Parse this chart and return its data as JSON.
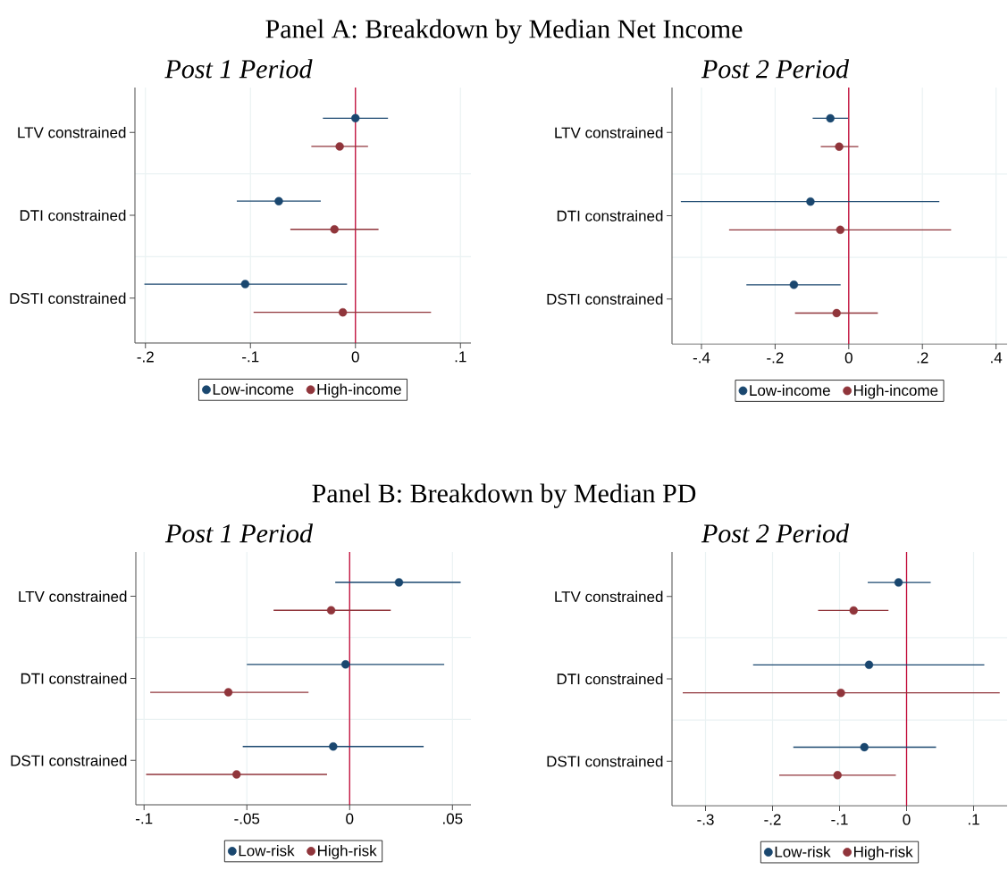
{
  "chart_data": [
    {
      "type": "scatter",
      "orientation": "horizontal",
      "title": "Post 1 Period",
      "annotations": [
        "Panel A: Breakdown by Median Net Income"
      ],
      "categories": [
        "LTV constrained",
        "DTI constrained",
        "DSTI constrained"
      ],
      "series": [
        {
          "name": "Low-income",
          "color": "#1a476f",
          "values": [
            0.0,
            -0.073,
            -0.105
          ],
          "errors": [
            [
              -0.031,
              0.031
            ],
            [
              -0.113,
              -0.033
            ],
            [
              -0.201,
              -0.008
            ]
          ]
        },
        {
          "name": "High-income",
          "color": "#90353b",
          "values": [
            -0.015,
            -0.02,
            -0.012
          ],
          "errors": [
            [
              -0.042,
              0.012
            ],
            [
              -0.062,
              0.022
            ],
            [
              -0.097,
              0.072
            ]
          ]
        }
      ],
      "xlim": [
        -0.21,
        0.11
      ],
      "xticks": [
        {
          "value": -0.2,
          "label": "-.2"
        },
        {
          "value": -0.1,
          "label": "-.1"
        },
        0,
        {
          "value": 0.1,
          "label": ".1"
        }
      ],
      "grid": true,
      "legend": "bottom",
      "marker": "circle",
      "ref_lines": [
        {
          "axis": "x",
          "value": 0,
          "color": "#c10534"
        }
      ]
    },
    {
      "type": "scatter",
      "orientation": "horizontal",
      "title": "Post 2 Period",
      "categories": [
        "LTV constrained",
        "DTI constrained",
        "DSTI constrained"
      ],
      "series": [
        {
          "name": "Low-income",
          "color": "#1a476f",
          "values": [
            -0.05,
            -0.104,
            -0.149
          ],
          "errors": [
            [
              -0.098,
              -0.002
            ],
            [
              -0.456,
              0.246
            ],
            [
              -0.278,
              -0.022
            ]
          ]
        },
        {
          "name": "High-income",
          "color": "#90353b",
          "values": [
            -0.026,
            -0.023,
            -0.033
          ],
          "errors": [
            [
              -0.076,
              0.026
            ],
            [
              -0.325,
              0.278
            ],
            [
              -0.146,
              0.079
            ]
          ]
        }
      ],
      "xlim": [
        -0.48,
        0.43
      ],
      "xticks": [
        {
          "value": -0.4,
          "label": "-.4"
        },
        {
          "value": -0.2,
          "label": "-.2"
        },
        0,
        {
          "value": 0.2,
          "label": ".2"
        },
        {
          "value": 0.4,
          "label": ".4"
        }
      ],
      "grid": true,
      "legend": "bottom",
      "marker": "circle",
      "ref_lines": [
        {
          "axis": "x",
          "value": 0,
          "color": "#c10534"
        }
      ]
    },
    {
      "type": "scatter",
      "orientation": "horizontal",
      "title": "Post 1 Period",
      "annotations": [
        "Panel B: Breakdown by Median PD"
      ],
      "categories": [
        "LTV constrained",
        "DTI constrained",
        "DSTI constrained"
      ],
      "series": [
        {
          "name": "Low-risk",
          "color": "#1a476f",
          "values": [
            0.024,
            -0.002,
            -0.008
          ],
          "errors": [
            [
              -0.007,
              0.054
            ],
            [
              -0.05,
              0.046
            ],
            [
              -0.052,
              0.036
            ]
          ]
        },
        {
          "name": "High-risk",
          "color": "#90353b",
          "values": [
            -0.009,
            -0.059,
            -0.055
          ],
          "errors": [
            [
              -0.037,
              0.02
            ],
            [
              -0.097,
              -0.02
            ],
            [
              -0.099,
              -0.011
            ]
          ]
        }
      ],
      "xlim": [
        -0.104,
        0.059
      ],
      "xticks": [
        {
          "value": -0.1,
          "label": "-.1"
        },
        {
          "value": -0.05,
          "label": "-.05"
        },
        0,
        {
          "value": 0.05,
          "label": ".05"
        }
      ],
      "grid": true,
      "legend": "bottom",
      "marker": "circle",
      "ref_lines": [
        {
          "axis": "x",
          "value": 0,
          "color": "#c10534"
        }
      ]
    },
    {
      "type": "scatter",
      "orientation": "horizontal",
      "title": "Post 2 Period",
      "categories": [
        "LTV constrained",
        "DTI constrained",
        "DSTI constrained"
      ],
      "series": [
        {
          "name": "Low-risk",
          "color": "#1a476f",
          "values": [
            -0.012,
            -0.056,
            -0.063
          ],
          "errors": [
            [
              -0.058,
              0.036
            ],
            [
              -0.229,
              0.116
            ],
            [
              -0.169,
              0.044
            ]
          ]
        },
        {
          "name": "High-risk",
          "color": "#90353b",
          "values": [
            -0.079,
            -0.098,
            -0.103
          ],
          "errors": [
            [
              -0.132,
              -0.027
            ],
            [
              -0.334,
              0.139
            ],
            [
              -0.19,
              -0.016
            ]
          ]
        }
      ],
      "xlim": [
        -0.35,
        0.15
      ],
      "xticks": [
        {
          "value": -0.3,
          "label": "-.3"
        },
        {
          "value": -0.2,
          "label": "-.2"
        },
        {
          "value": -0.1,
          "label": "-.1"
        },
        0,
        {
          "value": 0.1,
          "label": ".1"
        }
      ],
      "grid": true,
      "legend": "bottom",
      "marker": "circle",
      "ref_lines": [
        {
          "axis": "x",
          "value": 0,
          "color": "#c10534"
        }
      ]
    }
  ]
}
